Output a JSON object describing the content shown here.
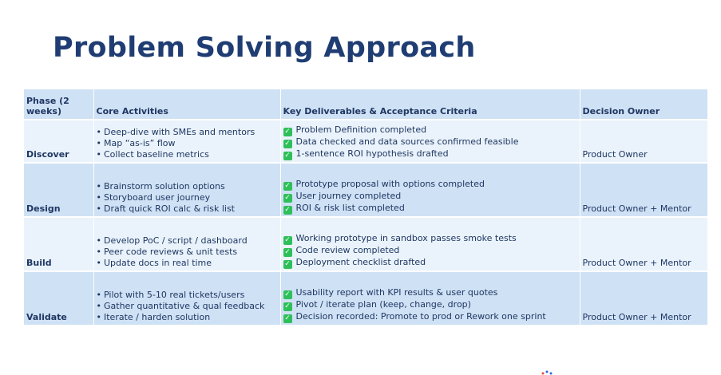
{
  "title": "Problem Solving Approach",
  "table": {
    "headers": [
      "Phase (2 weeks)",
      "Core Activities",
      "Key Deliverables & Acceptance Criteria",
      "Decision Owner"
    ],
    "rows": [
      {
        "phase": "Discover",
        "activities": [
          "Deep-dive with SMEs and mentors",
          "Map “as-is” flow",
          "Collect baseline metrics"
        ],
        "deliverables": [
          "Problem Definition completed",
          "Data checked and data sources confirmed feasible",
          "1-sentence ROI hypothesis drafted"
        ],
        "owner": "Product Owner"
      },
      {
        "phase": "Design",
        "activities": [
          "Brainstorm solution options",
          "Storyboard user journey",
          "Draft quick ROI calc & risk list"
        ],
        "deliverables": [
          "Prototype proposal with options completed",
          "User journey completed",
          "ROI & risk list completed"
        ],
        "owner": "Product Owner + Mentor"
      },
      {
        "phase": "Build",
        "activities": [
          "Develop PoC / script / dashboard",
          "Peer code reviews & unit tests",
          "Update docs in real time"
        ],
        "deliverables": [
          "Working prototype in sandbox passes smoke tests",
          "Code review completed",
          "Deployment checklist drafted"
        ],
        "owner": "Product Owner + Mentor"
      },
      {
        "phase": "Validate",
        "activities": [
          "Pilot with 5-10 real tickets/users",
          "Gather quantitative & qual feedback",
          "Iterate / harden solution"
        ],
        "deliverables": [
          "Usability report with KPI results & user quotes",
          "Pivot / iterate plan (keep, change, drop)",
          "Decision recorded: Promote to prod or Rework one sprint"
        ],
        "owner": "Product Owner + Mentor"
      }
    ]
  },
  "icons": {
    "bullet": "•",
    "check": "✓",
    "check_color": "#2fbf5a"
  }
}
